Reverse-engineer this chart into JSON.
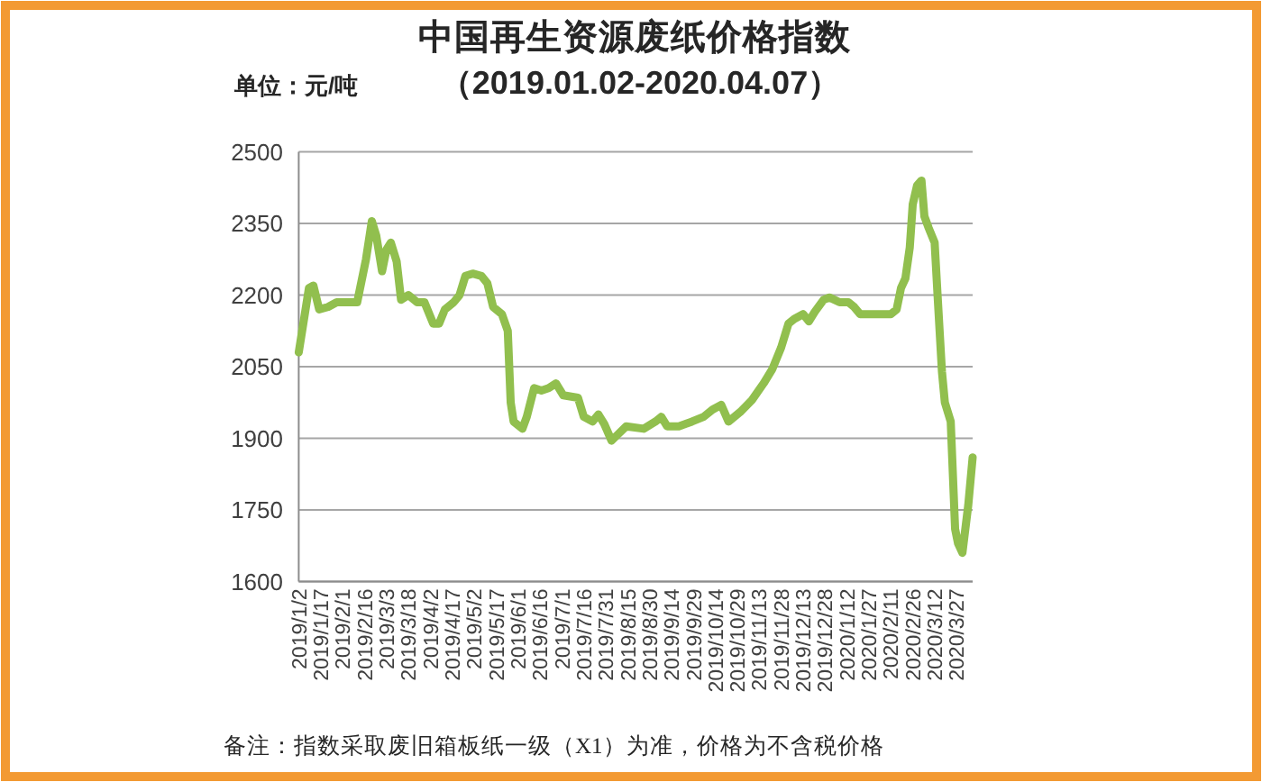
{
  "chart_data": {
    "type": "line",
    "title": "中国再生资源废纸价格指数",
    "subtitle": "（2019.01.02-2020.04.07）",
    "ylabel": "单位：元/吨",
    "annotations": [
      "备注：指数采取废旧箱板纸一级（X1）为准，价格为不含税价格"
    ],
    "x": [
      "2019-01-02",
      "2019-01-09",
      "2019-01-12",
      "2019-01-16",
      "2019-01-22",
      "2019-01-28",
      "2019-02-11",
      "2019-02-17",
      "2019-02-21",
      "2019-02-24",
      "2019-02-28",
      "2019-03-03",
      "2019-03-06",
      "2019-03-10",
      "2019-03-13",
      "2019-03-18",
      "2019-03-24",
      "2019-03-29",
      "2019-04-04",
      "2019-04-08",
      "2019-04-12",
      "2019-04-18",
      "2019-04-22",
      "2019-04-26",
      "2019-05-01",
      "2019-05-07",
      "2019-05-11",
      "2019-05-15",
      "2019-05-21",
      "2019-05-25",
      "2019-05-27",
      "2019-05-29",
      "2019-06-04",
      "2019-06-07",
      "2019-06-12",
      "2019-06-17",
      "2019-06-22",
      "2019-06-27",
      "2019-07-02",
      "2019-07-12",
      "2019-07-16",
      "2019-07-22",
      "2019-07-26",
      "2019-07-30",
      "2019-08-04",
      "2019-08-09",
      "2019-08-14",
      "2019-08-26",
      "2019-09-03",
      "2019-09-07",
      "2019-09-11",
      "2019-09-19",
      "2019-09-28",
      "2019-10-06",
      "2019-10-12",
      "2019-10-18",
      "2019-10-23",
      "2019-10-31",
      "2019-11-08",
      "2019-11-16",
      "2019-11-22",
      "2019-11-28",
      "2019-12-03",
      "2019-12-07",
      "2019-12-13",
      "2019-12-17",
      "2019-12-21",
      "2019-12-27",
      "2019-12-31",
      "2020-01-07",
      "2020-01-13",
      "2020-01-17",
      "2020-01-21",
      "2020-02-11",
      "2020-02-15",
      "2020-02-18",
      "2020-02-21",
      "2020-02-24",
      "2020-02-26",
      "2020-02-29",
      "2020-03-03",
      "2020-03-05",
      "2020-03-08",
      "2020-03-12",
      "2020-03-14",
      "2020-03-17",
      "2020-03-19",
      "2020-03-23",
      "2020-03-26",
      "2020-03-28",
      "2020-03-31",
      "2020-04-04",
      "2020-04-07"
    ],
    "series": [
      {
        "color": "#91bf4e",
        "values": [
          2080,
          2215,
          2220,
          2170,
          2175,
          2185,
          2185,
          2275,
          2355,
          2325,
          2250,
          2295,
          2310,
          2270,
          2190,
          2200,
          2185,
          2185,
          2140,
          2140,
          2170,
          2185,
          2200,
          2240,
          2245,
          2240,
          2225,
          2175,
          2160,
          2125,
          1975,
          1935,
          1920,
          1945,
          2005,
          2000,
          2005,
          2015,
          1990,
          1985,
          1945,
          1935,
          1950,
          1930,
          1895,
          1910,
          1925,
          1920,
          1935,
          1945,
          1925,
          1925,
          1935,
          1945,
          1960,
          1970,
          1935,
          1955,
          1980,
          2015,
          2045,
          2090,
          2140,
          2150,
          2160,
          2145,
          2165,
          2190,
          2195,
          2185,
          2185,
          2175,
          2160,
          2160,
          2170,
          2215,
          2235,
          2300,
          2390,
          2430,
          2440,
          2365,
          2340,
          2310,
          2200,
          2040,
          1975,
          1935,
          1710,
          1680,
          1660,
          1760,
          1860
        ]
      }
    ],
    "xlim": [
      "2019-01-02",
      "2020-04-07"
    ],
    "xticks": [
      {
        "value": "2019-01-02",
        "label": "2019/1/2"
      },
      {
        "value": "2019-01-17",
        "label": "2019/1/17"
      },
      {
        "value": "2019-02-01",
        "label": "2019/2/1"
      },
      {
        "value": "2019-02-16",
        "label": "2019/2/16"
      },
      {
        "value": "2019-03-03",
        "label": "2019/3/3"
      },
      {
        "value": "2019-03-18",
        "label": "2019/3/18"
      },
      {
        "value": "2019-04-02",
        "label": "2019/4/2"
      },
      {
        "value": "2019-04-17",
        "label": "2019/4/17"
      },
      {
        "value": "2019-05-02",
        "label": "2019/5/2"
      },
      {
        "value": "2019-05-17",
        "label": "2019/5/17"
      },
      {
        "value": "2019-06-01",
        "label": "2019/6/1"
      },
      {
        "value": "2019-06-16",
        "label": "2019/6/16"
      },
      {
        "value": "2019-07-01",
        "label": "2019/7/1"
      },
      {
        "value": "2019-07-16",
        "label": "2019/7/16"
      },
      {
        "value": "2019-07-31",
        "label": "2019/7/31"
      },
      {
        "value": "2019-08-15",
        "label": "2019/8/15"
      },
      {
        "value": "2019-08-30",
        "label": "2019/8/30"
      },
      {
        "value": "2019-09-14",
        "label": "2019/9/14"
      },
      {
        "value": "2019-09-29",
        "label": "2019/9/29"
      },
      {
        "value": "2019-10-14",
        "label": "2019/10/14"
      },
      {
        "value": "2019-10-29",
        "label": "2019/10/29"
      },
      {
        "value": "2019-11-13",
        "label": "2019/11/13"
      },
      {
        "value": "2019-11-28",
        "label": "2019/11/28"
      },
      {
        "value": "2019-12-13",
        "label": "2019/12/13"
      },
      {
        "value": "2019-12-28",
        "label": "2019/12/28"
      },
      {
        "value": "2020-01-12",
        "label": "2020/1/12"
      },
      {
        "value": "2020-01-27",
        "label": "2020/1/27"
      },
      {
        "value": "2020-02-11",
        "label": "2020/2/11"
      },
      {
        "value": "2020-02-26",
        "label": "2020/2/26"
      },
      {
        "value": "2020-03-12",
        "label": "2020/3/12"
      },
      {
        "value": "2020-03-27",
        "label": "2020/3/27"
      }
    ],
    "ylim": [
      1600,
      2500
    ],
    "yticks": [
      1600,
      1750,
      1900,
      2050,
      2200,
      2350,
      2500
    ],
    "grid": "y",
    "line_style": "solid"
  }
}
